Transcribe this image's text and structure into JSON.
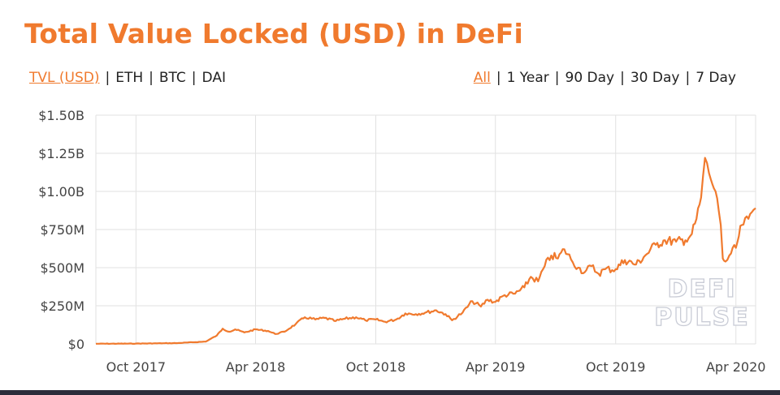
{
  "title": "Total Value Locked (USD) in DeFi",
  "metric_tabs": [
    {
      "label": "TVL (USD)",
      "active": true
    },
    {
      "label": "ETH",
      "active": false
    },
    {
      "label": "BTC",
      "active": false
    },
    {
      "label": "DAI",
      "active": false
    }
  ],
  "range_tabs": [
    {
      "label": "All",
      "active": true
    },
    {
      "label": "1 Year",
      "active": false
    },
    {
      "label": "90 Day",
      "active": false
    },
    {
      "label": "30 Day",
      "active": false
    },
    {
      "label": "7 Day",
      "active": false
    }
  ],
  "separator": "|",
  "watermark": [
    "DEFI",
    "PULSE"
  ],
  "colors": {
    "accent": "#f07a2e",
    "grid": "#e2e2e2",
    "line": "#f07a2e"
  },
  "chart_data": {
    "type": "line",
    "title": "Total Value Locked (USD) in DeFi",
    "xlabel": "",
    "ylabel": "",
    "x_unit": "month",
    "x_ticks": [
      "Oct 2017",
      "Apr 2018",
      "Oct 2018",
      "Apr 2019",
      "Oct 2019",
      "Apr 2020"
    ],
    "x_tick_dates": [
      "2017-10-01",
      "2018-04-01",
      "2018-10-01",
      "2019-04-01",
      "2019-10-01",
      "2020-04-01"
    ],
    "xlim": [
      "2017-08-01",
      "2020-05-01"
    ],
    "y_ticks": [
      "$0",
      "$250M",
      "$500M",
      "$750M",
      "$1.00B",
      "$1.25B",
      "$1.50B"
    ],
    "y_tick_values": [
      0,
      250,
      500,
      750,
      1000,
      1250,
      1500
    ],
    "y_unit": "USD millions",
    "ylim": [
      0,
      1500
    ],
    "grid": true,
    "series": [
      {
        "points": [
          [
            "2017-08-01",
            1
          ],
          [
            "2017-10-01",
            2
          ],
          [
            "2017-12-01",
            5
          ],
          [
            "2018-01-15",
            15
          ],
          [
            "2018-02-01",
            55
          ],
          [
            "2018-02-10",
            100
          ],
          [
            "2018-02-20",
            80
          ],
          [
            "2018-03-01",
            95
          ],
          [
            "2018-03-15",
            75
          ],
          [
            "2018-04-01",
            95
          ],
          [
            "2018-04-20",
            85
          ],
          [
            "2018-05-01",
            65
          ],
          [
            "2018-05-15",
            80
          ],
          [
            "2018-06-01",
            130
          ],
          [
            "2018-06-15",
            175
          ],
          [
            "2018-07-01",
            160
          ],
          [
            "2018-07-15",
            170
          ],
          [
            "2018-08-01",
            150
          ],
          [
            "2018-08-15",
            165
          ],
          [
            "2018-09-01",
            175
          ],
          [
            "2018-09-15",
            155
          ],
          [
            "2018-10-01",
            160
          ],
          [
            "2018-10-15",
            145
          ],
          [
            "2018-11-01",
            160
          ],
          [
            "2018-11-15",
            200
          ],
          [
            "2018-12-01",
            195
          ],
          [
            "2018-12-15",
            205
          ],
          [
            "2019-01-01",
            220
          ],
          [
            "2019-01-15",
            195
          ],
          [
            "2019-01-25",
            155
          ],
          [
            "2019-02-10",
            205
          ],
          [
            "2019-02-25",
            280
          ],
          [
            "2019-03-10",
            245
          ],
          [
            "2019-03-20",
            290
          ],
          [
            "2019-04-01",
            275
          ],
          [
            "2019-04-15",
            320
          ],
          [
            "2019-05-01",
            330
          ],
          [
            "2019-05-15",
            370
          ],
          [
            "2019-05-25",
            440
          ],
          [
            "2019-06-05",
            410
          ],
          [
            "2019-06-15",
            510
          ],
          [
            "2019-06-25",
            580
          ],
          [
            "2019-07-05",
            560
          ],
          [
            "2019-07-15",
            620
          ],
          [
            "2019-07-25",
            555
          ],
          [
            "2019-08-05",
            500
          ],
          [
            "2019-08-15",
            470
          ],
          [
            "2019-08-25",
            510
          ],
          [
            "2019-09-05",
            460
          ],
          [
            "2019-09-15",
            490
          ],
          [
            "2019-10-01",
            490
          ],
          [
            "2019-10-15",
            550
          ],
          [
            "2019-11-01",
            520
          ],
          [
            "2019-11-15",
            580
          ],
          [
            "2019-12-01",
            650
          ],
          [
            "2019-12-15",
            680
          ],
          [
            "2020-01-01",
            670
          ],
          [
            "2020-01-15",
            680
          ],
          [
            "2020-01-25",
            720
          ],
          [
            "2020-02-01",
            820
          ],
          [
            "2020-02-08",
            960
          ],
          [
            "2020-02-14",
            1220
          ],
          [
            "2020-02-20",
            1120
          ],
          [
            "2020-02-25",
            1050
          ],
          [
            "2020-03-01",
            1000
          ],
          [
            "2020-03-06",
            870
          ],
          [
            "2020-03-09",
            780
          ],
          [
            "2020-03-12",
            560
          ],
          [
            "2020-03-16",
            540
          ],
          [
            "2020-03-22",
            580
          ],
          [
            "2020-04-01",
            630
          ],
          [
            "2020-04-10",
            780
          ],
          [
            "2020-04-20",
            820
          ],
          [
            "2020-04-28",
            880
          ],
          [
            "2020-05-01",
            890
          ]
        ]
      }
    ]
  }
}
